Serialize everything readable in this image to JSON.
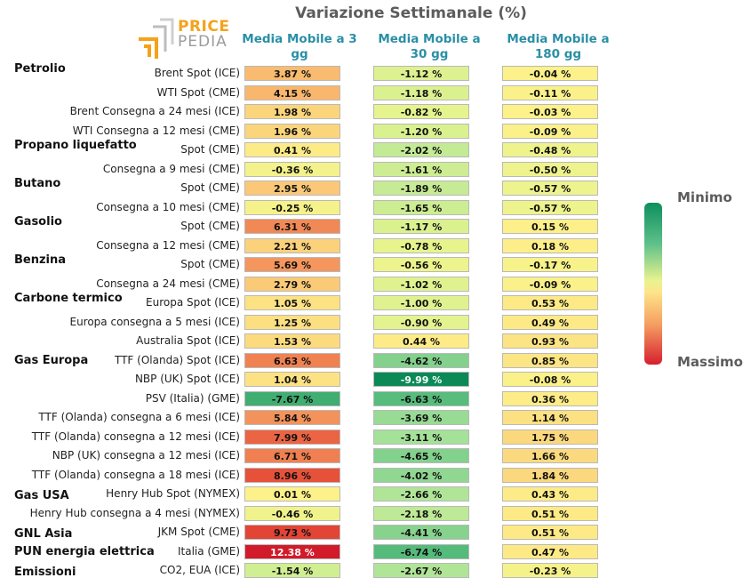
{
  "title": "Variazione Settimanale (%)",
  "logo": {
    "line1": "PRICE",
    "line2": "PEDIA"
  },
  "columns": [
    "Media Mobile a 3 gg",
    "Media Mobile a 30 gg",
    "Media Mobile a 180 gg"
  ],
  "legend": {
    "min_label": "Minimo",
    "max_label": "Massimo",
    "min_color": "#0e8f5d",
    "max_color": "#d61f2e"
  },
  "groups": [
    {
      "label": "Petrolio",
      "row": 0
    },
    {
      "label": "Propano liquefatto",
      "row": 4
    },
    {
      "label": "Butano",
      "row": 6
    },
    {
      "label": "Gasolio",
      "row": 8
    },
    {
      "label": "Benzina",
      "row": 10
    },
    {
      "label": "Carbone termico",
      "row": 12
    },
    {
      "label": "Gas Europa",
      "row": 15
    },
    {
      "label": "Gas USA",
      "row": 22
    },
    {
      "label": "GNL Asia",
      "row": 24
    },
    {
      "label": "PUN energia elettrica",
      "row": 25
    },
    {
      "label": "Emissioni",
      "row": 26
    }
  ],
  "chart_data": {
    "type": "heatmap",
    "title": "Variazione Settimanale (%)",
    "columns": [
      "Media Mobile a 3 gg",
      "Media Mobile a 30 gg",
      "Media Mobile a 180 gg"
    ],
    "rows": [
      {
        "label": "Brent Spot (ICE)",
        "values": [
          3.87,
          -1.12,
          -0.04
        ],
        "text": [
          "3.87 %",
          "-1.12 %",
          "-0.04 %"
        ]
      },
      {
        "label": "WTI Spot (CME)",
        "values": [
          4.15,
          -1.18,
          -0.11
        ],
        "text": [
          "4.15 %",
          "-1.18 %",
          "-0.11 %"
        ]
      },
      {
        "label": "Brent Consegna a 24 mesi (ICE)",
        "values": [
          1.98,
          -0.82,
          -0.03
        ],
        "text": [
          "1.98 %",
          "-0.82 %",
          "-0.03 %"
        ]
      },
      {
        "label": "WTI Consegna a 12 mesi (CME)",
        "values": [
          1.96,
          -1.2,
          -0.09
        ],
        "text": [
          "1.96 %",
          "-1.20 %",
          "-0.09 %"
        ]
      },
      {
        "label": "Spot (CME)",
        "values": [
          0.41,
          -2.02,
          -0.48
        ],
        "text": [
          "0.41 %",
          "-2.02 %",
          "-0.48 %"
        ]
      },
      {
        "label": "Consegna a 9 mesi (CME)",
        "values": [
          -0.36,
          -1.61,
          -0.5
        ],
        "text": [
          "-0.36 %",
          "-1.61 %",
          "-0.50 %"
        ]
      },
      {
        "label": "Spot (CME)",
        "values": [
          2.95,
          -1.89,
          -0.57
        ],
        "text": [
          "2.95 %",
          "-1.89 %",
          "-0.57 %"
        ]
      },
      {
        "label": "Consegna a 10 mesi (CME)",
        "values": [
          -0.25,
          -1.65,
          -0.57
        ],
        "text": [
          "-0.25 %",
          "-1.65 %",
          "-0.57 %"
        ]
      },
      {
        "label": "Spot (CME)",
        "values": [
          6.31,
          -1.17,
          0.15
        ],
        "text": [
          "6.31 %",
          "-1.17 %",
          "0.15 %"
        ]
      },
      {
        "label": "Consegna a 12 mesi (CME)",
        "values": [
          2.21,
          -0.78,
          0.18
        ],
        "text": [
          "2.21 %",
          "-0.78 %",
          "0.18 %"
        ]
      },
      {
        "label": "Spot (CME)",
        "values": [
          5.69,
          -0.56,
          -0.17
        ],
        "text": [
          "5.69 %",
          "-0.56 %",
          "-0.17 %"
        ]
      },
      {
        "label": "Consegna a 24 mesi (CME)",
        "values": [
          2.79,
          -1.02,
          -0.09
        ],
        "text": [
          "2.79 %",
          "-1.02 %",
          "-0.09 %"
        ]
      },
      {
        "label": "Europa Spot (ICE)",
        "values": [
          1.05,
          -1.0,
          0.53
        ],
        "text": [
          "1.05 %",
          "-1.00 %",
          "0.53 %"
        ]
      },
      {
        "label": "Europa consegna a 5 mesi (ICE)",
        "values": [
          1.25,
          -0.9,
          0.49
        ],
        "text": [
          "1.25 %",
          "-0.90 %",
          "0.49 %"
        ]
      },
      {
        "label": "Australia Spot (ICE)",
        "values": [
          1.53,
          0.44,
          0.93
        ],
        "text": [
          "1.53 %",
          "0.44 %",
          "0.93 %"
        ]
      },
      {
        "label": "TTF (Olanda) Spot (ICE)",
        "values": [
          6.63,
          -4.62,
          0.85
        ],
        "text": [
          "6.63 %",
          "-4.62 %",
          "0.85 %"
        ]
      },
      {
        "label": "NBP (UK) Spot (ICE)",
        "values": [
          1.04,
          -9.99,
          -0.08
        ],
        "text": [
          "1.04 %",
          "-9.99 %",
          "-0.08 %"
        ]
      },
      {
        "label": "PSV (Italia) (GME)",
        "values": [
          -7.67,
          -6.63,
          0.36
        ],
        "text": [
          "-7.67 %",
          "-6.63 %",
          "0.36 %"
        ]
      },
      {
        "label": "TTF (Olanda) consegna a 6 mesi (ICE)",
        "values": [
          5.84,
          -3.69,
          1.14
        ],
        "text": [
          "5.84 %",
          "-3.69 %",
          "1.14 %"
        ]
      },
      {
        "label": "TTF (Olanda) consegna a 12 mesi (ICE)",
        "values": [
          7.99,
          -3.11,
          1.75
        ],
        "text": [
          "7.99 %",
          "-3.11 %",
          "1.75 %"
        ]
      },
      {
        "label": "NBP (UK) consegna a 12 mesi (ICE)",
        "values": [
          6.71,
          -4.65,
          1.66
        ],
        "text": [
          "6.71 %",
          "-4.65 %",
          "1.66 %"
        ]
      },
      {
        "label": "TTF (Olanda) consegna a 18 mesi (ICE)",
        "values": [
          8.96,
          -4.02,
          1.84
        ],
        "text": [
          "8.96 %",
          "-4.02 %",
          "1.84 %"
        ]
      },
      {
        "label": "Henry Hub Spot (NYMEX)",
        "values": [
          0.01,
          -2.66,
          0.43
        ],
        "text": [
          "0.01 %",
          "-2.66 %",
          "0.43 %"
        ]
      },
      {
        "label": "Henry Hub consegna a 4 mesi (NYMEX)",
        "values": [
          -0.46,
          -2.18,
          0.51
        ],
        "text": [
          "-0.46 %",
          "-2.18 %",
          "0.51 %"
        ]
      },
      {
        "label": "JKM Spot (CME)",
        "values": [
          9.73,
          -4.41,
          0.51
        ],
        "text": [
          "9.73 %",
          "-4.41 %",
          "0.51 %"
        ]
      },
      {
        "label": "Italia (GME)",
        "values": [
          12.38,
          -6.74,
          0.47
        ],
        "text": [
          "12.38 %",
          "-6.74 %",
          "0.47 %"
        ]
      },
      {
        "label": "CO2, EUA (ICE)",
        "values": [
          -1.54,
          -2.67,
          -0.23
        ],
        "text": [
          "-1.54 %",
          "-2.67 %",
          "-0.23 %"
        ]
      }
    ],
    "color_scale": {
      "min_color": "#0e8f5d",
      "mid_color": "#fef08f",
      "max_color": "#d61f2e"
    }
  }
}
